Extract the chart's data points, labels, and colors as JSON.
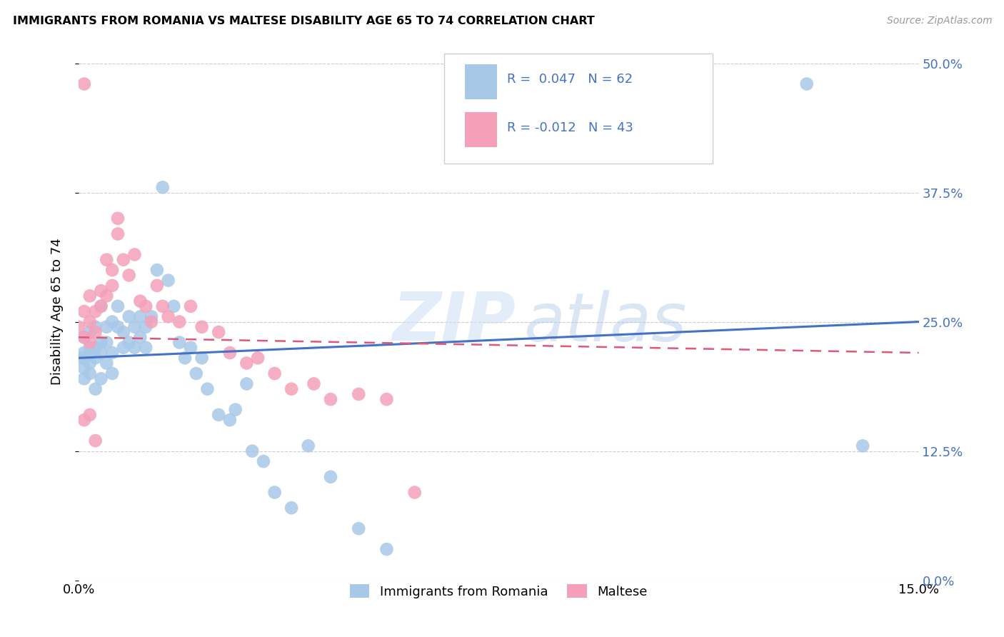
{
  "title": "IMMIGRANTS FROM ROMANIA VS MALTESE DISABILITY AGE 65 TO 74 CORRELATION CHART",
  "source": "Source: ZipAtlas.com",
  "xlim": [
    0.0,
    0.15
  ],
  "ylim": [
    0.0,
    0.52
  ],
  "ylabel": "Disability Age 65 to 74",
  "r_romania": 0.047,
  "n_romania": 62,
  "r_maltese": -0.012,
  "n_maltese": 43,
  "color_romania": "#a8c8e8",
  "color_maltese": "#f4a0b8",
  "line_color_romania": "#4472c4",
  "line_color_maltese": "#e05878",
  "watermark_zip": "ZIP",
  "watermark_atlas": "atlas",
  "romania_x": [
    0.0,
    0.001,
    0.001,
    0.001,
    0.001,
    0.001,
    0.002,
    0.002,
    0.002,
    0.002,
    0.002,
    0.003,
    0.003,
    0.003,
    0.003,
    0.004,
    0.004,
    0.004,
    0.004,
    0.005,
    0.005,
    0.005,
    0.006,
    0.006,
    0.006,
    0.007,
    0.007,
    0.008,
    0.008,
    0.009,
    0.009,
    0.01,
    0.01,
    0.011,
    0.011,
    0.012,
    0.012,
    0.013,
    0.014,
    0.015,
    0.016,
    0.017,
    0.018,
    0.019,
    0.02,
    0.021,
    0.022,
    0.023,
    0.025,
    0.027,
    0.028,
    0.03,
    0.031,
    0.033,
    0.035,
    0.038,
    0.041,
    0.045,
    0.05,
    0.055,
    0.13,
    0.14
  ],
  "romania_y": [
    0.215,
    0.22,
    0.205,
    0.235,
    0.195,
    0.215,
    0.225,
    0.21,
    0.2,
    0.24,
    0.22,
    0.245,
    0.215,
    0.225,
    0.185,
    0.23,
    0.22,
    0.195,
    0.265,
    0.23,
    0.245,
    0.21,
    0.25,
    0.22,
    0.2,
    0.265,
    0.245,
    0.24,
    0.225,
    0.255,
    0.23,
    0.245,
    0.225,
    0.255,
    0.235,
    0.245,
    0.225,
    0.255,
    0.3,
    0.38,
    0.29,
    0.265,
    0.23,
    0.215,
    0.225,
    0.2,
    0.215,
    0.185,
    0.16,
    0.155,
    0.165,
    0.19,
    0.125,
    0.115,
    0.085,
    0.07,
    0.13,
    0.1,
    0.05,
    0.03,
    0.48,
    0.13
  ],
  "maltese_x": [
    0.0,
    0.001,
    0.001,
    0.001,
    0.002,
    0.002,
    0.002,
    0.003,
    0.003,
    0.004,
    0.004,
    0.005,
    0.005,
    0.006,
    0.006,
    0.007,
    0.007,
    0.008,
    0.009,
    0.01,
    0.011,
    0.012,
    0.013,
    0.014,
    0.015,
    0.016,
    0.018,
    0.02,
    0.022,
    0.025,
    0.027,
    0.03,
    0.032,
    0.035,
    0.038,
    0.042,
    0.045,
    0.05,
    0.055,
    0.06,
    0.001,
    0.002,
    0.003
  ],
  "maltese_y": [
    0.245,
    0.235,
    0.26,
    0.48,
    0.25,
    0.23,
    0.275,
    0.26,
    0.24,
    0.265,
    0.28,
    0.275,
    0.31,
    0.285,
    0.3,
    0.35,
    0.335,
    0.31,
    0.295,
    0.315,
    0.27,
    0.265,
    0.25,
    0.285,
    0.265,
    0.255,
    0.25,
    0.265,
    0.245,
    0.24,
    0.22,
    0.21,
    0.215,
    0.2,
    0.185,
    0.19,
    0.175,
    0.18,
    0.175,
    0.085,
    0.155,
    0.16,
    0.135
  ]
}
